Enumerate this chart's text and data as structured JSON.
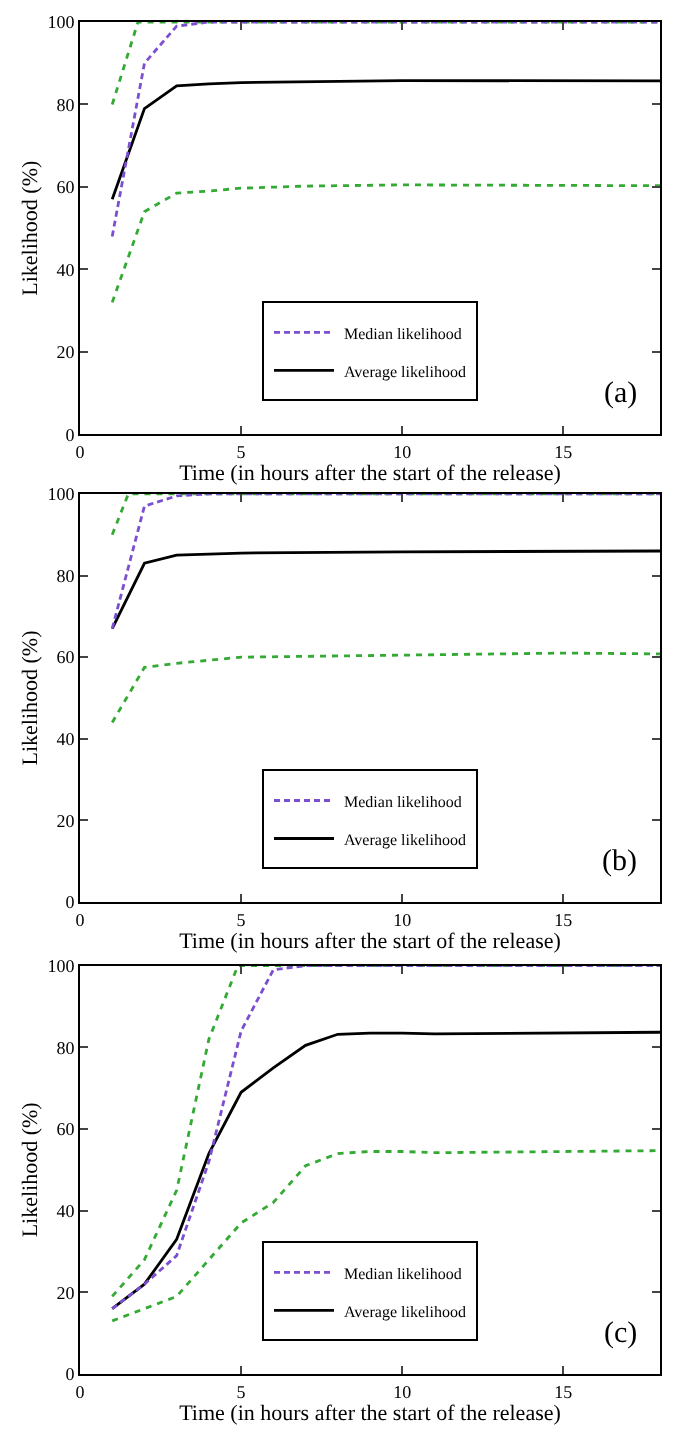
{
  "chart_data": [
    {
      "type": "line",
      "xlabel": "Time (in hours after the start of the release)",
      "ylabel": "Likelihood (%)",
      "xlim": [
        0,
        18
      ],
      "ylim": [
        0,
        100
      ],
      "xticks": [
        0,
        5,
        10,
        15
      ],
      "yticks": [
        0,
        20,
        40,
        60,
        80,
        100
      ],
      "legend": "bottom",
      "annotations": [
        "(a)"
      ],
      "series": [
        {
          "name": "Median likelihood",
          "color": "#7b4fd0",
          "line_style": "dashed",
          "x": [
            1,
            2,
            3,
            4,
            5,
            10,
            18
          ],
          "values": [
            48,
            90,
            99,
            100,
            100,
            100,
            100
          ]
        },
        {
          "name": "Average likelihood",
          "color": "#000000",
          "line_style": "solid",
          "x": [
            1,
            2,
            3,
            4,
            5,
            10,
            18
          ],
          "values": [
            57,
            79,
            84.5,
            85,
            85.3,
            85.8,
            85.7
          ]
        },
        {
          "color": "#33aa33",
          "line_style": "dotted",
          "x": [
            1,
            1.8,
            18
          ],
          "values": [
            80,
            100,
            100
          ]
        },
        {
          "color": "#33aa33",
          "line_style": "dotted",
          "x": [
            1,
            2,
            3,
            4,
            5,
            7,
            10,
            18
          ],
          "values": [
            32,
            54,
            58.5,
            59,
            59.7,
            60.2,
            60.5,
            60.3
          ]
        }
      ]
    },
    {
      "type": "line",
      "xlabel": "Time (in hours after the start of the release)",
      "ylabel": "Likelihood (%)",
      "xlim": [
        0,
        18
      ],
      "ylim": [
        0,
        100
      ],
      "xticks": [
        0,
        5,
        10,
        15
      ],
      "yticks": [
        0,
        20,
        40,
        60,
        80,
        100
      ],
      "legend": "bottom",
      "annotations": [
        "(b)"
      ],
      "series": [
        {
          "name": "Median likelihood",
          "color": "#7b4fd0",
          "line_style": "dashed",
          "x": [
            1,
            2,
            3,
            4,
            5,
            10,
            18
          ],
          "values": [
            67,
            97,
            99.5,
            100,
            100,
            100,
            100
          ]
        },
        {
          "name": "Average likelihood",
          "color": "#000000",
          "line_style": "solid",
          "x": [
            1,
            2,
            3,
            5,
            10,
            18
          ],
          "values": [
            67,
            83,
            85,
            85.5,
            85.8,
            86
          ]
        },
        {
          "color": "#33aa33",
          "line_style": "dotted",
          "x": [
            1,
            1.5,
            18
          ],
          "values": [
            90,
            100,
            100
          ]
        },
        {
          "color": "#33aa33",
          "line_style": "dotted",
          "x": [
            1,
            2,
            3,
            5,
            10,
            15,
            18
          ],
          "values": [
            44,
            57.5,
            58.5,
            60,
            60.5,
            61,
            60.8
          ]
        }
      ]
    },
    {
      "type": "line",
      "xlabel": "Time (in hours after the start of the release)",
      "ylabel": "Likelihood (%)",
      "xlim": [
        0,
        18
      ],
      "ylim": [
        0,
        100
      ],
      "xticks": [
        0,
        5,
        10,
        15
      ],
      "yticks": [
        0,
        20,
        40,
        60,
        80,
        100
      ],
      "legend": "bottom",
      "annotations": [
        "(c)"
      ],
      "series": [
        {
          "name": "Median likelihood",
          "color": "#7b4fd0",
          "line_style": "dashed",
          "x": [
            1,
            2,
            3,
            4,
            5,
            6,
            7,
            18
          ],
          "values": [
            16,
            22,
            29,
            52,
            84,
            99,
            100,
            100
          ]
        },
        {
          "name": "Average likelihood",
          "color": "#000000",
          "line_style": "solid",
          "x": [
            1,
            2,
            3,
            4,
            5,
            6,
            7,
            8,
            9,
            10,
            11,
            18
          ],
          "values": [
            16,
            22,
            33,
            54,
            69,
            75,
            80.5,
            83.2,
            83.5,
            83.5,
            83.3,
            83.7
          ]
        },
        {
          "color": "#33aa33",
          "line_style": "dotted",
          "x": [
            1,
            2,
            3,
            4,
            4.9,
            18
          ],
          "values": [
            19,
            28,
            45,
            82,
            100,
            100
          ]
        },
        {
          "color": "#33aa33",
          "line_style": "dotted",
          "x": [
            1,
            2,
            3,
            4,
            5,
            6,
            7,
            8,
            9,
            10,
            11,
            18
          ],
          "values": [
            13,
            16,
            19,
            28,
            37,
            42,
            51,
            54,
            54.5,
            54.5,
            54.2,
            54.7
          ]
        }
      ]
    }
  ]
}
